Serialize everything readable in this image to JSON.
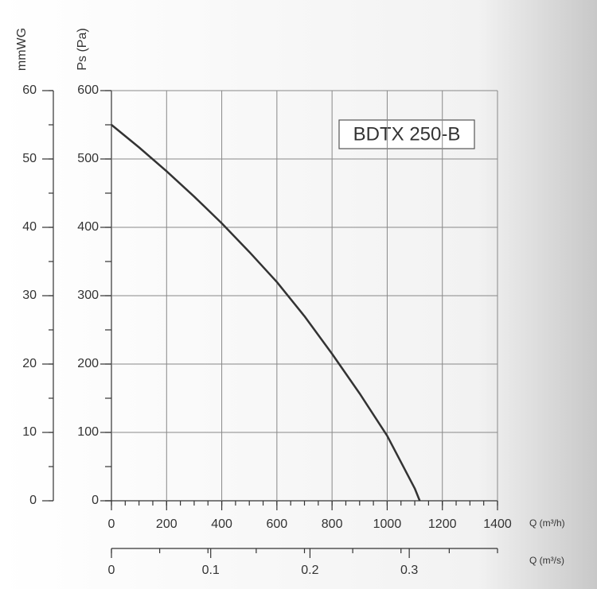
{
  "chart_data": {
    "type": "line",
    "annotation": "BDTX 250-B",
    "y_label": "Ps (Pa)",
    "y2_label": "mmWG",
    "x_label": "Q (m³/h)",
    "x2_label": "Q (m³/s)",
    "x": [
      0,
      100,
      200,
      300,
      400,
      500,
      600,
      700,
      800,
      900,
      1000,
      1100,
      1118
    ],
    "series": [
      {
        "name": "BDTX 250-B",
        "color": "#333333",
        "values": [
          550,
          517,
          482,
          445,
          406,
          364,
          320,
          270,
          215,
          157,
          95,
          18,
          0
        ]
      }
    ],
    "xlim": [
      0,
      1400
    ],
    "xticks": [
      0,
      200,
      400,
      600,
      800,
      1000,
      1200,
      1400
    ],
    "x2lim": [
      0,
      0.3889
    ],
    "x2ticks": [
      0,
      0.1,
      0.2,
      0.3
    ],
    "ylim": [
      0,
      600
    ],
    "yticks": [
      0,
      100,
      200,
      300,
      400,
      500,
      600
    ],
    "y2lim": [
      0,
      60
    ],
    "y2ticks": [
      0,
      10,
      20,
      30,
      40,
      50,
      60
    ],
    "grid": true
  }
}
